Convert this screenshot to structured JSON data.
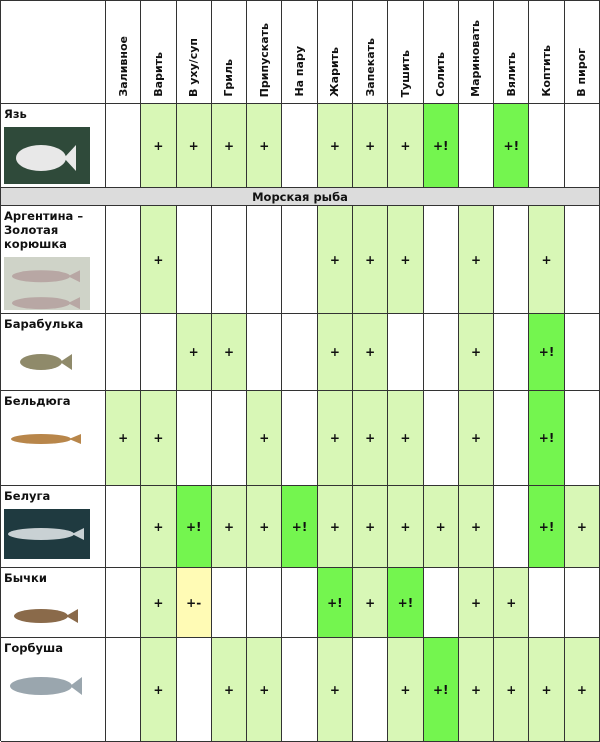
{
  "colors": {
    "plus": "#d8f7b6",
    "plus_excl": "#74f54f",
    "plus_minus": "#fffbb5",
    "empty": "#ffffff"
  },
  "columns": [
    "Заливное",
    "Варить",
    "В уху/суп",
    "Гриль",
    "Припускать",
    "На пару",
    "Жарить",
    "Запекать",
    "Тушить",
    "Солить",
    "Мариновать",
    "Вялить",
    "Коптить",
    "В пирог"
  ],
  "section_title": "Морская рыба",
  "rows": [
    {
      "name": "Язь",
      "image": "fish-photo-yaz",
      "cells": [
        "",
        "+",
        "+",
        "+",
        "+",
        "",
        "+",
        "+",
        "+",
        "+!",
        "",
        "+!",
        "",
        ""
      ]
    },
    {
      "name": "Аргентина – Золотая корюшка",
      "image": "fish-photo-argentina",
      "cells": [
        "",
        "+",
        "",
        "",
        "",
        "",
        "+",
        "+",
        "+",
        "",
        "+",
        "",
        "+",
        ""
      ]
    },
    {
      "name": "Барабулька",
      "image": "fish-photo-barabulka",
      "cells": [
        "",
        "",
        "+",
        "+",
        "",
        "",
        "+",
        "+",
        "",
        "",
        "+",
        "",
        "+!",
        ""
      ]
    },
    {
      "name": "Бельдюга",
      "image": "fish-photo-beldyuga",
      "cells": [
        "+",
        "+",
        "",
        "",
        "+",
        "",
        "+",
        "+",
        "+",
        "",
        "+",
        "",
        "+!",
        ""
      ]
    },
    {
      "name": "Белуга",
      "image": "fish-photo-beluga",
      "cells": [
        "",
        "+",
        "+!",
        "+",
        "+",
        "+!",
        "+",
        "+",
        "+",
        "+",
        "+",
        "",
        "+!",
        "+"
      ]
    },
    {
      "name": "Бычки",
      "image": "fish-photo-bychki",
      "cells": [
        "",
        "+",
        "+-",
        "",
        "",
        "",
        "+!",
        "+",
        "+!",
        "",
        "+",
        "+",
        "",
        ""
      ]
    },
    {
      "name": "Горбуша",
      "image": "fish-photo-gorbusha",
      "cells": [
        "",
        "+",
        "",
        "+",
        "+",
        "",
        "+",
        "",
        "+",
        "+!",
        "+",
        "+",
        "+",
        "+"
      ]
    }
  ]
}
